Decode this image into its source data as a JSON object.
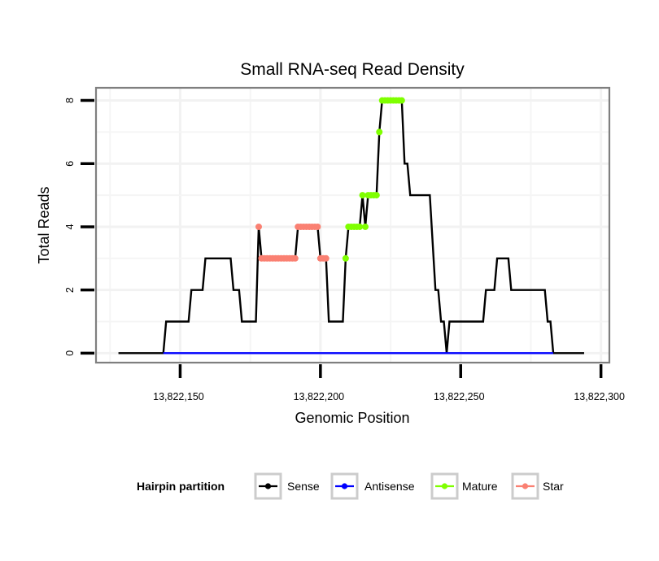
{
  "chart_data": {
    "type": "line",
    "title": "Small RNA-seq Read Density",
    "xlabel": "Genomic Position",
    "ylabel": "Total Reads",
    "xlim": [
      13822120,
      13822303
    ],
    "ylim": [
      -0.3,
      8.4
    ],
    "x_ticks": [
      13822150,
      13822200,
      13822250,
      13822300
    ],
    "x_tick_labels": [
      "13,822,150",
      "13,822,200",
      "13,822,250",
      "13,822,300"
    ],
    "y_ticks": [
      0,
      2,
      4,
      6,
      8
    ],
    "y_tick_labels": [
      "0",
      "2",
      "4",
      "6",
      "8"
    ],
    "grid": true,
    "legend": {
      "title": "Hairpin partition",
      "position": "bottom",
      "entries": [
        {
          "label": "Sense",
          "color": "#000000"
        },
        {
          "label": "Antisense",
          "color": "#0000ff"
        },
        {
          "label": "Mature",
          "color": "#7fff00"
        },
        {
          "label": "Star",
          "color": "#fa8072"
        }
      ]
    },
    "series": [
      {
        "name": "Sense",
        "color": "#000000",
        "style": "line",
        "points": [
          [
            13822128,
            0
          ],
          [
            13822144,
            0
          ],
          [
            13822145,
            1
          ],
          [
            13822153,
            1
          ],
          [
            13822154,
            2
          ],
          [
            13822158,
            2
          ],
          [
            13822159,
            3
          ],
          [
            13822168,
            3
          ],
          [
            13822169,
            2
          ],
          [
            13822171,
            2
          ],
          [
            13822172,
            1
          ],
          [
            13822177,
            1
          ],
          [
            13822178,
            4
          ],
          [
            13822179,
            3
          ],
          [
            13822191,
            3
          ],
          [
            13822192,
            4
          ],
          [
            13822199,
            4
          ],
          [
            13822200,
            3
          ],
          [
            13822202,
            3
          ],
          [
            13822203,
            1
          ],
          [
            13822208,
            1
          ],
          [
            13822209,
            3
          ],
          [
            13822210,
            4
          ],
          [
            13822214,
            4
          ],
          [
            13822215,
            5
          ],
          [
            13822216,
            4
          ],
          [
            13822217,
            5
          ],
          [
            13822220,
            5
          ],
          [
            13822221,
            7
          ],
          [
            13822222,
            8
          ],
          [
            13822229,
            8
          ],
          [
            13822230,
            6
          ],
          [
            13822231,
            6
          ],
          [
            13822232,
            5
          ],
          [
            13822239,
            5
          ],
          [
            13822241,
            2
          ],
          [
            13822242,
            2
          ],
          [
            13822243,
            1
          ],
          [
            13822244,
            1
          ],
          [
            13822245,
            0
          ],
          [
            13822246,
            1
          ],
          [
            13822258,
            1
          ],
          [
            13822259,
            2
          ],
          [
            13822262,
            2
          ],
          [
            13822263,
            3
          ],
          [
            13822267,
            3
          ],
          [
            13822268,
            2
          ],
          [
            13822280,
            2
          ],
          [
            13822281,
            1
          ],
          [
            13822282,
            1
          ],
          [
            13822283,
            0
          ],
          [
            13822294,
            0
          ]
        ]
      },
      {
        "name": "Antisense",
        "color": "#0000ff",
        "style": "line",
        "points": [
          [
            13822144,
            0
          ],
          [
            13822283,
            0
          ]
        ]
      },
      {
        "name": "Mature",
        "color": "#7fff00",
        "style": "points",
        "points": [
          [
            13822209,
            3
          ],
          [
            13822210,
            4
          ],
          [
            13822211,
            4
          ],
          [
            13822212,
            4
          ],
          [
            13822213,
            4
          ],
          [
            13822214,
            4
          ],
          [
            13822215,
            5
          ],
          [
            13822216,
            4
          ],
          [
            13822217,
            5
          ],
          [
            13822218,
            5
          ],
          [
            13822219,
            5
          ],
          [
            13822220,
            5
          ],
          [
            13822221,
            7
          ],
          [
            13822222,
            8
          ],
          [
            13822223,
            8
          ],
          [
            13822224,
            8
          ],
          [
            13822225,
            8
          ],
          [
            13822226,
            8
          ],
          [
            13822227,
            8
          ],
          [
            13822228,
            8
          ],
          [
            13822229,
            8
          ]
        ]
      },
      {
        "name": "Star",
        "color": "#fa8072",
        "style": "points",
        "points": [
          [
            13822178,
            4
          ],
          [
            13822179,
            3
          ],
          [
            13822180,
            3
          ],
          [
            13822181,
            3
          ],
          [
            13822182,
            3
          ],
          [
            13822183,
            3
          ],
          [
            13822184,
            3
          ],
          [
            13822185,
            3
          ],
          [
            13822186,
            3
          ],
          [
            13822187,
            3
          ],
          [
            13822188,
            3
          ],
          [
            13822189,
            3
          ],
          [
            13822190,
            3
          ],
          [
            13822191,
            3
          ],
          [
            13822192,
            4
          ],
          [
            13822193,
            4
          ],
          [
            13822194,
            4
          ],
          [
            13822195,
            4
          ],
          [
            13822196,
            4
          ],
          [
            13822197,
            4
          ],
          [
            13822198,
            4
          ],
          [
            13822199,
            4
          ],
          [
            13822200,
            3
          ],
          [
            13822201,
            3
          ],
          [
            13822202,
            3
          ]
        ]
      }
    ]
  }
}
